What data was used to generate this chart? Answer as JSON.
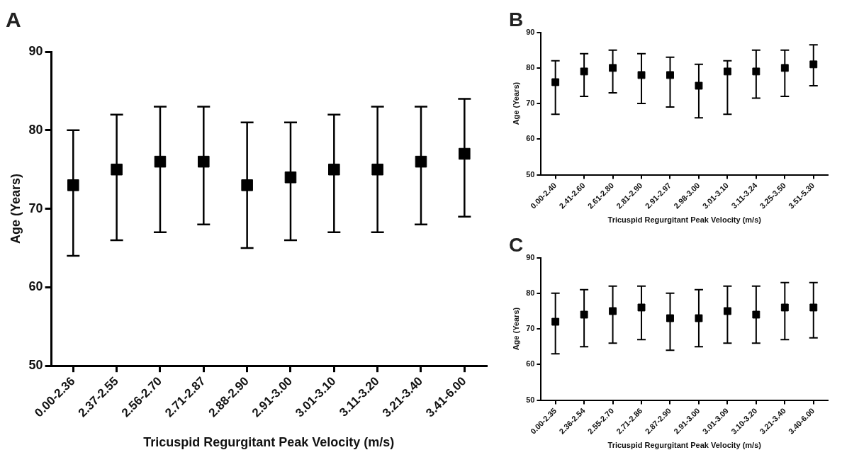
{
  "chart_data": [
    {
      "type": "scatter",
      "title": "A",
      "xlabel": "Tricuspid Regurgitant Peak Velocity (m/s)",
      "ylabel": "Age (Years)",
      "categories": [
        "0.00-2.36",
        "2.37-2.55",
        "2.56-2.70",
        "2.71-2.87",
        "2.88-2.90",
        "2.91-3.00",
        "3.01-3.10",
        "3.11-3.20",
        "3.21-3.40",
        "3.41-6.00"
      ],
      "series": [
        {
          "color": "#000000",
          "values": [
            73,
            75,
            76,
            76,
            73,
            74,
            75,
            75,
            76,
            77
          ],
          "errors": [
            [
              64,
              80
            ],
            [
              66,
              82
            ],
            [
              67,
              83
            ],
            [
              68,
              83
            ],
            [
              65,
              81
            ],
            [
              66,
              81
            ],
            [
              67,
              82
            ],
            [
              67,
              83
            ],
            [
              68,
              83
            ],
            [
              69,
              84
            ]
          ]
        }
      ],
      "ylim": [
        50,
        90
      ],
      "yticks": [
        50,
        60,
        70,
        80,
        90
      ],
      "marker": "square",
      "grid": false,
      "legend": false
    },
    {
      "type": "scatter",
      "title": "B",
      "xlabel": "Tricuspid Regurgitant Peak Velocity (m/s)",
      "ylabel": "Age (Years)",
      "categories": [
        "0.00-2.40",
        "2.41-2.60",
        "2.61-2.80",
        "2.81-2.90",
        "2.91-2.97",
        "2.98-3.00",
        "3.01-3.10",
        "3.11-3.24",
        "3.25-3.50",
        "3.51-5.30"
      ],
      "series": [
        {
          "color": "#000000",
          "values": [
            76,
            79,
            80,
            78,
            78,
            75,
            79,
            79,
            80,
            81
          ],
          "errors": [
            [
              67,
              82
            ],
            [
              72,
              84
            ],
            [
              73,
              85
            ],
            [
              70,
              84
            ],
            [
              69,
              83
            ],
            [
              66,
              81
            ],
            [
              67,
              82
            ],
            [
              71.5,
              85
            ],
            [
              72,
              85
            ],
            [
              75,
              86.5
            ]
          ]
        }
      ],
      "ylim": [
        50,
        90
      ],
      "yticks": [
        50,
        60,
        70,
        80,
        90
      ],
      "marker": "square",
      "grid": false,
      "legend": false
    },
    {
      "type": "scatter",
      "title": "C",
      "xlabel": "Tricuspid Regurgitant Peak Velocity (m/s)",
      "ylabel": "Age (Years)",
      "categories": [
        "0.00-2.35",
        "2.36-2.54",
        "2.55-2.70",
        "2.71-2.86",
        "2.87-2.90",
        "2.91-3.00",
        "3.01-3.09",
        "3.10-3.20",
        "3.21-3.40",
        "3.40-6.00"
      ],
      "series": [
        {
          "color": "#000000",
          "values": [
            72,
            74,
            75,
            76,
            73,
            73,
            75,
            74,
            76,
            76
          ],
          "errors": [
            [
              63,
              80
            ],
            [
              65,
              81
            ],
            [
              66,
              82
            ],
            [
              67,
              82
            ],
            [
              64,
              80
            ],
            [
              65,
              81
            ],
            [
              66,
              82
            ],
            [
              66,
              82
            ],
            [
              67,
              83
            ],
            [
              67.5,
              83
            ]
          ]
        }
      ],
      "ylim": [
        50,
        90
      ],
      "yticks": [
        50,
        60,
        70,
        80,
        90
      ],
      "marker": "square",
      "grid": false,
      "legend": false
    }
  ]
}
